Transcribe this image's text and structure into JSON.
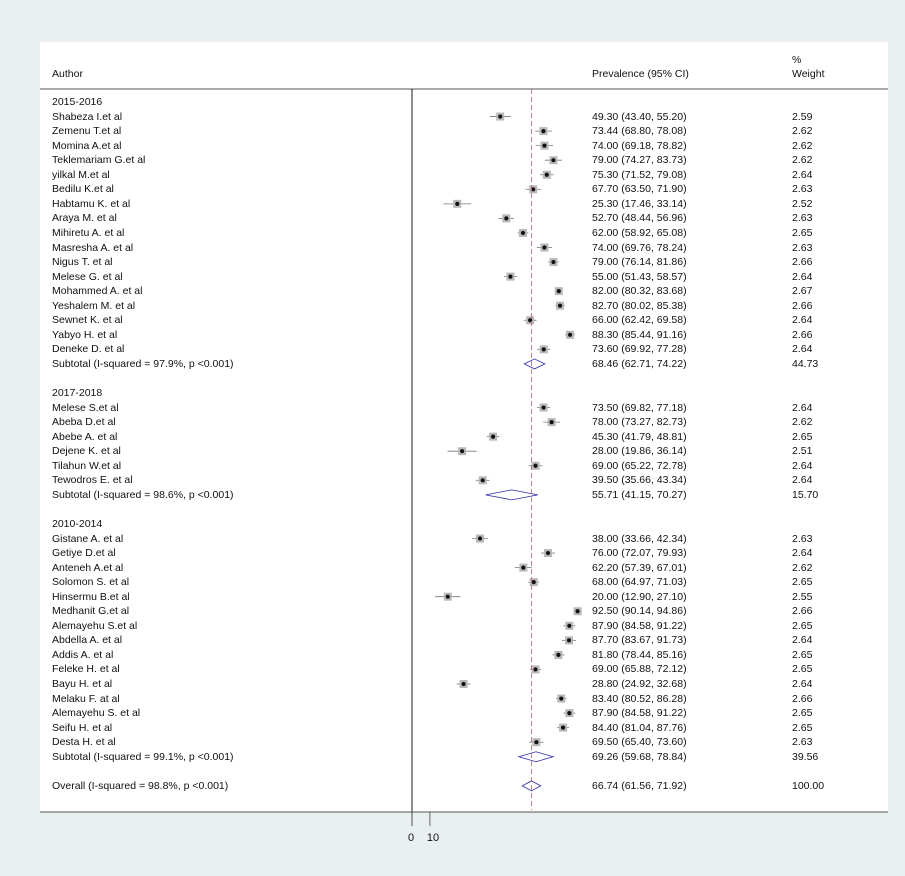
{
  "chart_data": {
    "type": "forest",
    "headers": {
      "author": "Author",
      "estimate": "Prevalence (95% CI)",
      "weight_line1": "%",
      "weight_line2": "Weight"
    },
    "xaxis": {
      "ticks": [
        0,
        10
      ],
      "tick_labels": [
        "0",
        "10"
      ],
      "range_max": 100
    },
    "overall_line_value": 66.74,
    "groups": [
      {
        "name": "2015-2016",
        "studies": [
          {
            "author": "Shabeza I.et al",
            "est": 49.3,
            "lo": 43.4,
            "hi": 55.2,
            "ci_text": "49.30 (43.40, 55.20)",
            "weight": "2.59"
          },
          {
            "author": "Zemenu T.et al",
            "est": 73.44,
            "lo": 68.8,
            "hi": 78.08,
            "ci_text": "73.44 (68.80, 78.08)",
            "weight": "2.62"
          },
          {
            "author": "Momina A.et al",
            "est": 74.0,
            "lo": 69.18,
            "hi": 78.82,
            "ci_text": "74.00 (69.18, 78.82)",
            "weight": "2.62"
          },
          {
            "author": "Teklemariam G.et al",
            "est": 79.0,
            "lo": 74.27,
            "hi": 83.73,
            "ci_text": "79.00 (74.27, 83.73)",
            "weight": "2.62"
          },
          {
            "author": "yilkal M.et al",
            "est": 75.3,
            "lo": 71.52,
            "hi": 79.08,
            "ci_text": "75.30 (71.52, 79.08)",
            "weight": "2.64"
          },
          {
            "author": "Bedilu K.et al",
            "est": 67.7,
            "lo": 63.5,
            "hi": 71.9,
            "ci_text": "67.70 (63.50, 71.90)",
            "weight": "2.63"
          },
          {
            "author": "Habtamu K. et al",
            "est": 25.3,
            "lo": 17.46,
            "hi": 33.14,
            "ci_text": "25.30 (17.46, 33.14)",
            "weight": "2.52"
          },
          {
            "author": "Araya M. et al",
            "est": 52.7,
            "lo": 48.44,
            "hi": 56.96,
            "ci_text": "52.70 (48.44, 56.96)",
            "weight": "2.63"
          },
          {
            "author": "Mihiretu A. et al",
            "est": 62.0,
            "lo": 58.92,
            "hi": 65.08,
            "ci_text": "62.00 (58.92, 65.08)",
            "weight": "2.65"
          },
          {
            "author": "Masresha A. et al",
            "est": 74.0,
            "lo": 69.76,
            "hi": 78.24,
            "ci_text": "74.00 (69.76, 78.24)",
            "weight": "2.63"
          },
          {
            "author": "Nigus T. et al",
            "est": 79.0,
            "lo": 76.14,
            "hi": 81.86,
            "ci_text": "79.00 (76.14, 81.86)",
            "weight": "2.66"
          },
          {
            "author": "Melese G. et al",
            "est": 55.0,
            "lo": 51.43,
            "hi": 58.57,
            "ci_text": "55.00 (51.43, 58.57)",
            "weight": "2.64"
          },
          {
            "author": "Mohammed A. et al",
            "est": 82.0,
            "lo": 80.32,
            "hi": 83.68,
            "ci_text": "82.00 (80.32, 83.68)",
            "weight": "2.67"
          },
          {
            "author": "Yeshalem M. et al",
            "est": 82.7,
            "lo": 80.02,
            "hi": 85.38,
            "ci_text": "82.70 (80.02, 85.38)",
            "weight": "2.66"
          },
          {
            "author": "Sewnet K. et al",
            "est": 66.0,
            "lo": 62.42,
            "hi": 69.58,
            "ci_text": "66.00 (62.42, 69.58)",
            "weight": "2.64"
          },
          {
            "author": "Yabyo H. et al",
            "est": 88.3,
            "lo": 85.44,
            "hi": 91.16,
            "ci_text": "88.30 (85.44, 91.16)",
            "weight": "2.66"
          },
          {
            "author": "Deneke D. et al",
            "est": 73.6,
            "lo": 69.92,
            "hi": 77.28,
            "ci_text": "73.60 (69.92, 77.28)",
            "weight": "2.64"
          }
        ],
        "subtotal": {
          "label": "Subtotal  (I-squared = 97.9%, p <0.001)",
          "est": 68.46,
          "lo": 62.71,
          "hi": 74.22,
          "ci_text": "68.46 (62.71, 74.22)",
          "weight": "44.73"
        }
      },
      {
        "name": "2017-2018",
        "studies": [
          {
            "author": "Melese S.et al",
            "est": 73.5,
            "lo": 69.82,
            "hi": 77.18,
            "ci_text": "73.50 (69.82, 77.18)",
            "weight": "2.64"
          },
          {
            "author": "Abeba D.et al",
            "est": 78.0,
            "lo": 73.27,
            "hi": 82.73,
            "ci_text": "78.00 (73.27, 82.73)",
            "weight": "2.62"
          },
          {
            "author": "Abebe A. et al",
            "est": 45.3,
            "lo": 41.79,
            "hi": 48.81,
            "ci_text": "45.30 (41.79, 48.81)",
            "weight": "2.65"
          },
          {
            "author": "Dejene K. et al",
            "est": 28.0,
            "lo": 19.86,
            "hi": 36.14,
            "ci_text": "28.00 (19.86, 36.14)",
            "weight": "2.51"
          },
          {
            "author": "Tilahun W.et al",
            "est": 69.0,
            "lo": 65.22,
            "hi": 72.78,
            "ci_text": "69.00 (65.22, 72.78)",
            "weight": "2.64"
          },
          {
            "author": "Tewodros E. et al",
            "est": 39.5,
            "lo": 35.66,
            "hi": 43.34,
            "ci_text": "39.50 (35.66, 43.34)",
            "weight": "2.64"
          }
        ],
        "subtotal": {
          "label": "Subtotal  (I-squared = 98.6%, p <0.001)",
          "est": 55.71,
          "lo": 41.15,
          "hi": 70.27,
          "ci_text": "55.71 (41.15, 70.27)",
          "weight": "15.70"
        }
      },
      {
        "name": "2010-2014",
        "studies": [
          {
            "author": "Gistane A. et al",
            "est": 38.0,
            "lo": 33.66,
            "hi": 42.34,
            "ci_text": "38.00 (33.66, 42.34)",
            "weight": "2.63"
          },
          {
            "author": "Getiye D.et al",
            "est": 76.0,
            "lo": 72.07,
            "hi": 79.93,
            "ci_text": "76.00 (72.07, 79.93)",
            "weight": "2.64"
          },
          {
            "author": "Anteneh A.et al",
            "est": 62.2,
            "lo": 57.39,
            "hi": 67.01,
            "ci_text": "62.20 (57.39, 67.01)",
            "weight": "2.62"
          },
          {
            "author": "Solomon S. et al",
            "est": 68.0,
            "lo": 64.97,
            "hi": 71.03,
            "ci_text": "68.00 (64.97, 71.03)",
            "weight": "2.65"
          },
          {
            "author": "Hinsermu B.et al",
            "est": 20.0,
            "lo": 12.9,
            "hi": 27.1,
            "ci_text": "20.00 (12.90, 27.10)",
            "weight": "2.55"
          },
          {
            "author": "Medhanit G.et al",
            "est": 92.5,
            "lo": 90.14,
            "hi": 94.86,
            "ci_text": "92.50 (90.14, 94.86)",
            "weight": "2.66"
          },
          {
            "author": "Alemayehu S.et al",
            "est": 87.9,
            "lo": 84.58,
            "hi": 91.22,
            "ci_text": "87.90 (84.58, 91.22)",
            "weight": "2.65"
          },
          {
            "author": "Abdella A. et al",
            "est": 87.7,
            "lo": 83.67,
            "hi": 91.73,
            "ci_text": "87.70 (83.67, 91.73)",
            "weight": "2.64"
          },
          {
            "author": "Addis A. et al",
            "est": 81.8,
            "lo": 78.44,
            "hi": 85.16,
            "ci_text": "81.80 (78.44, 85.16)",
            "weight": "2.65"
          },
          {
            "author": "Feleke H. et al",
            "est": 69.0,
            "lo": 65.88,
            "hi": 72.12,
            "ci_text": "69.00 (65.88, 72.12)",
            "weight": "2.65"
          },
          {
            "author": "Bayu H. et al",
            "est": 28.8,
            "lo": 24.92,
            "hi": 32.68,
            "ci_text": "28.80 (24.92, 32.68)",
            "weight": "2.64"
          },
          {
            "author": "Melaku F. at al",
            "est": 83.4,
            "lo": 80.52,
            "hi": 86.28,
            "ci_text": "83.40 (80.52, 86.28)",
            "weight": "2.66"
          },
          {
            "author": "Alemayehu S. et al",
            "est": 87.9,
            "lo": 84.58,
            "hi": 91.22,
            "ci_text": "87.90 (84.58, 91.22)",
            "weight": "2.65"
          },
          {
            "author": "Seifu H. et al",
            "est": 84.4,
            "lo": 81.04,
            "hi": 87.76,
            "ci_text": "84.40 (81.04, 87.76)",
            "weight": "2.65"
          },
          {
            "author": "Desta H. et al",
            "est": 69.5,
            "lo": 65.4,
            "hi": 73.6,
            "ci_text": "69.50 (65.40, 73.60)",
            "weight": "2.63"
          }
        ],
        "subtotal": {
          "label": "Subtotal  (I-squared = 99.1%, p <0.001)",
          "est": 69.26,
          "lo": 59.68,
          "hi": 78.84,
          "ci_text": "69.26 (59.68, 78.84)",
          "weight": "39.56"
        }
      }
    ],
    "overall": {
      "label": "Overall  (I-squared = 98.8%, p <0.001)",
      "est": 66.74,
      "lo": 61.56,
      "hi": 71.92,
      "ci_text": "66.74 (61.56, 71.92)",
      "weight": "100.00"
    }
  }
}
